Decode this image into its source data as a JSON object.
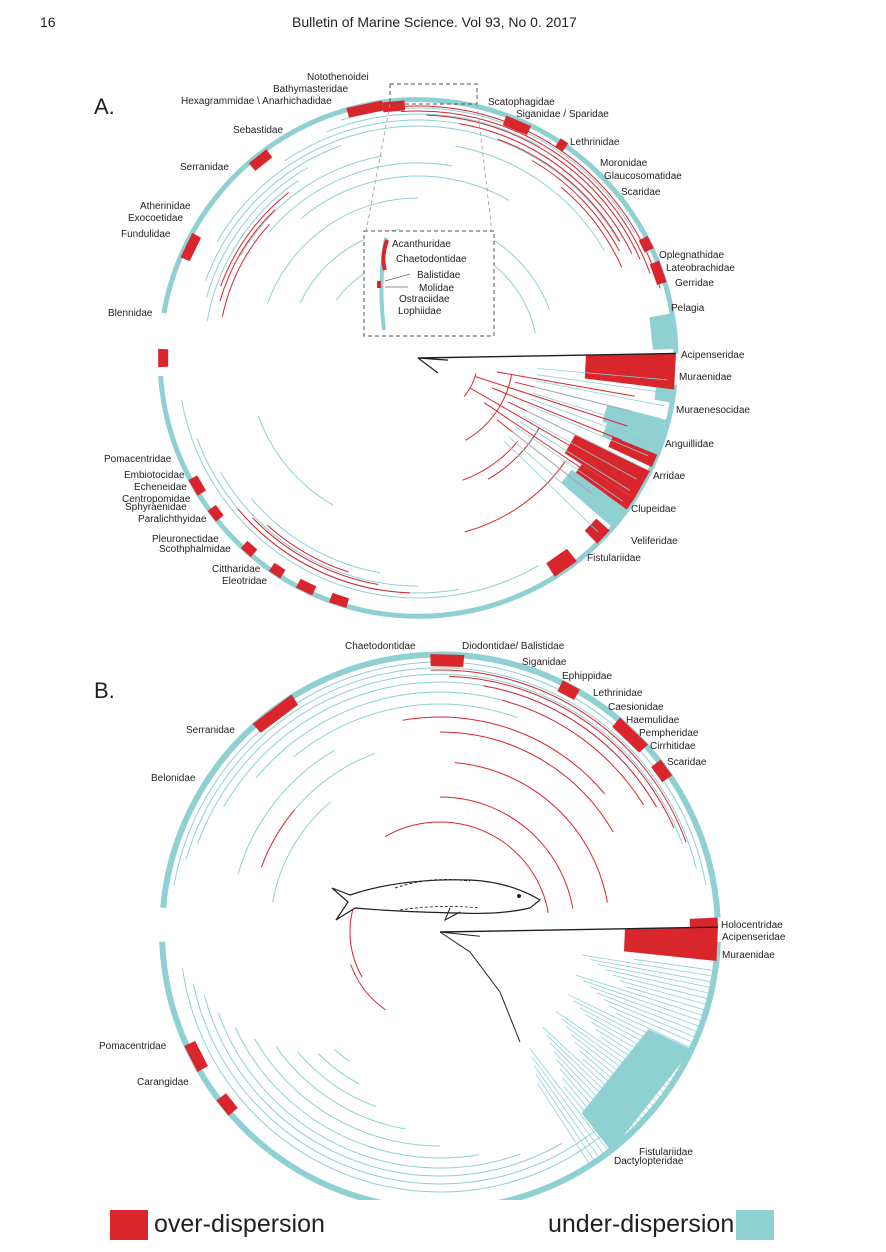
{
  "header": {
    "page_number": "16",
    "journal": "Bulletin of Marine Science. Vol 93, No 0. 2017"
  },
  "colors": {
    "over_dispersion": "#d9262c",
    "under_dispersion": "#8fd0d3",
    "root": "#231f20"
  },
  "panel_a": {
    "label": "A.",
    "inset_labels": [
      "Acanthuridae",
      "Chaetodontidae",
      "Balistidae",
      "Molidae",
      "Ostraciidae",
      "Lophiidae"
    ],
    "clade_labels": [
      "Notothenoidei",
      "Bathymasteridae",
      "Hexagrammidae \\ Anarhichadidae",
      "Scatophagidae",
      "Siganidae / Sparidae",
      "Lethrinidae",
      "Moronidae",
      "Glaucosomatidae",
      "Scaridae",
      "Oplegnathidae",
      "Lateobrachidae",
      "Gerridae",
      "Pelagia",
      "Acipenseridae",
      "Muraenidae",
      "Muraenesocidae",
      "Anguillidae",
      "Arridae",
      "Clupeidae",
      "Veliferidae",
      "Fistulariidae",
      "Sebastidae",
      "Serranidae",
      "Atherinidae",
      "Exocoetidae",
      "Fundulidae",
      "Blennidae",
      "Pomacentridae",
      "Embiotocidae",
      "Echeneidae",
      "Centropomidae",
      "Sphyraenidae",
      "Paralichthyidae",
      "Pleuronectidae",
      "Scothphalmidae",
      "Cittharidae",
      "Eleotridae"
    ]
  },
  "panel_b": {
    "label": "B.",
    "clade_labels": [
      "Chaetodontidae",
      "Diodontidae/ Balistidae",
      "Siganidae",
      "Ephippidae",
      "Lethrinidae",
      "Caesionidae",
      "Haemulidae",
      "Pempheridae",
      "Cirrhitidae",
      "Scaridae",
      "Serranidae",
      "Belonidae",
      "Holocentridae",
      "Acipenseridae",
      "Muraenidae",
      "Pomacentridae",
      "Carangidae",
      "Fistulariidae",
      "Dactylopteridae"
    ]
  },
  "legend": {
    "over": "over-dispersion",
    "under": "under-dispersion"
  }
}
